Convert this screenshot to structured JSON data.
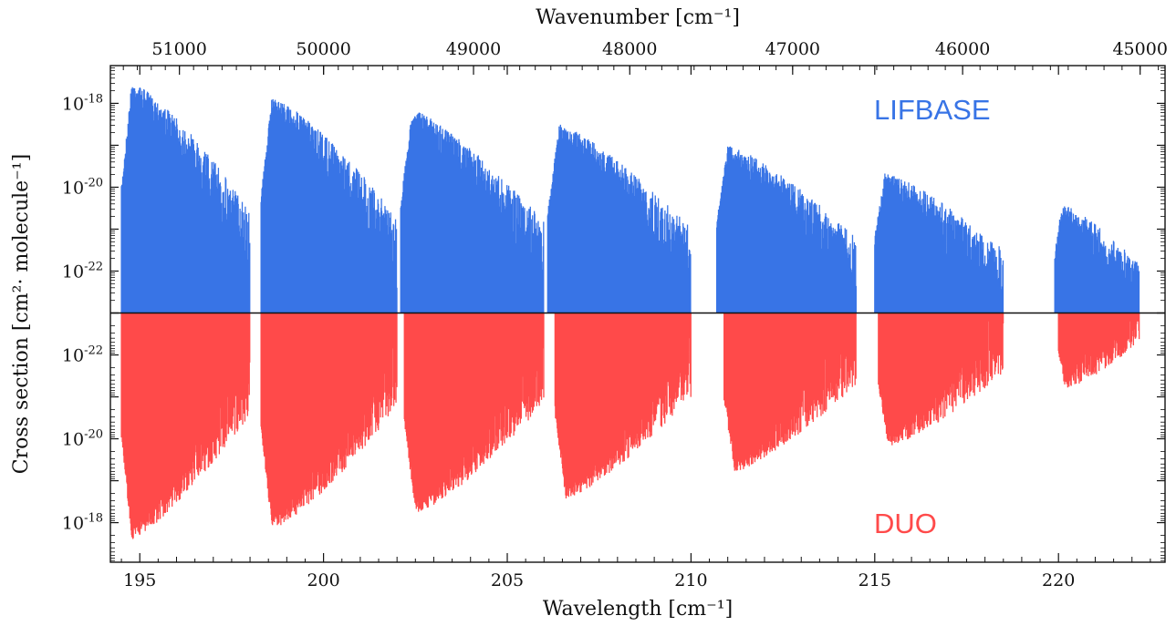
{
  "chart_data": {
    "type": "line",
    "ylabel": "Cross section [cm²· molecule⁻¹]",
    "xlabel_bottom": "Wavelength [cm⁻¹]",
    "xlabel_top": "Wavenumber [cm⁻¹]",
    "x_range": [
      194.2,
      222.9
    ],
    "x_ticks_bottom": [
      195,
      200,
      205,
      210,
      215,
      220
    ],
    "x_tick_labels_bottom": [
      "195",
      "200",
      "205",
      "210",
      "215",
      "220"
    ],
    "x_ticks_top": [
      51000,
      50000,
      49000,
      48000,
      47000,
      46000,
      45000
    ],
    "x_tick_labels_top": [
      "51000",
      "50000",
      "49000",
      "48000",
      "47000",
      "46000",
      "45000"
    ],
    "y_scale": "log",
    "y_baseline_exponent": -23,
    "y_range_exponent": [
      -23,
      -17.1
    ],
    "y_ticks_upper": [
      "10-18",
      "10-20",
      "10-22"
    ],
    "y_ticks_lower": [
      "10-22",
      "10-20",
      "10-18"
    ],
    "y_tick_exponents": [
      -18,
      -20,
      -22
    ],
    "y_tick_labels": [
      "10",
      "10",
      "10"
    ],
    "y_tick_superscripts": [
      "-18",
      "-20",
      "-22"
    ],
    "grid": false,
    "series": [
      {
        "name": "LIFBASE",
        "label": "LIFBASE",
        "color": "#3874e6",
        "direction": "up",
        "bands": [
          {
            "head": 194.5,
            "end": 198.0,
            "peak_exp": -17.5
          },
          {
            "head": 198.3,
            "end": 202.0,
            "peak_exp": -17.85
          },
          {
            "head": 202.1,
            "end": 206.0,
            "peak_exp": -18.15
          },
          {
            "head": 206.1,
            "end": 210.0,
            "peak_exp": -18.5
          },
          {
            "head": 210.7,
            "end": 214.5,
            "peak_exp": -19.0
          },
          {
            "head": 215.0,
            "end": 218.5,
            "peak_exp": -19.65
          },
          {
            "head": 219.9,
            "end": 222.2,
            "peak_exp": -20.4
          }
        ]
      },
      {
        "name": "DUO",
        "label": "DUO",
        "color": "#ff4a4a",
        "direction": "down",
        "bands": [
          {
            "head": 194.5,
            "end": 198.0,
            "peak_exp": -17.6
          },
          {
            "head": 198.3,
            "end": 202.0,
            "peak_exp": -17.85
          },
          {
            "head": 202.2,
            "end": 206.0,
            "peak_exp": -18.2
          },
          {
            "head": 206.3,
            "end": 210.0,
            "peak_exp": -18.55
          },
          {
            "head": 210.9,
            "end": 214.5,
            "peak_exp": -19.2
          },
          {
            "head": 215.1,
            "end": 218.5,
            "peak_exp": -19.8
          },
          {
            "head": 220.0,
            "end": 222.2,
            "peak_exp": -21.2
          }
        ]
      }
    ]
  }
}
